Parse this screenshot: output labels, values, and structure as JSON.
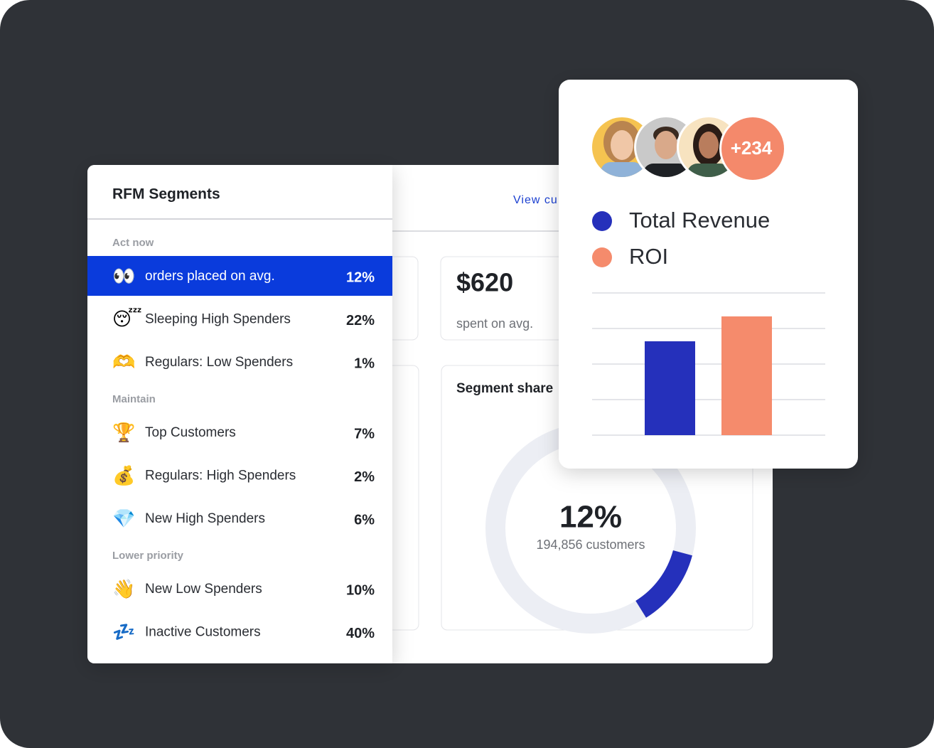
{
  "rfm_segments": {
    "title": "RFM Segments",
    "groups": [
      {
        "label": "Act now",
        "rows": [
          {
            "icon": "👀",
            "name": "orders placed on avg.",
            "share": "12%",
            "selected": true
          },
          {
            "icon": "😴",
            "name": "Sleeping High Spenders",
            "share": "22%",
            "selected": false
          },
          {
            "icon": "🫶",
            "name": "Regulars: Low Spenders",
            "share": "1%",
            "selected": false
          }
        ]
      },
      {
        "label": "Maintain",
        "rows": [
          {
            "icon": "🏆",
            "name": "Top Customers",
            "share": "7%",
            "selected": false
          },
          {
            "icon": "💰",
            "name": "Regulars: High Spenders",
            "share": "2%",
            "selected": false
          },
          {
            "icon": "💎",
            "name": "New High Spenders",
            "share": "6%",
            "selected": false
          }
        ]
      },
      {
        "label": "Lower priority",
        "rows": [
          {
            "icon": "👋",
            "name": "New Low Spenders",
            "share": "10%",
            "selected": false
          },
          {
            "icon": "💤",
            "name": "Inactive Customers",
            "share": "40%",
            "selected": false
          }
        ]
      }
    ]
  },
  "dashboard": {
    "header_link": "View cu",
    "stat": {
      "value": "$620",
      "label": "spent on avg."
    },
    "segment_share": {
      "title": "Segment share",
      "chart_data": {
        "type": "donut",
        "values": [
          12
        ],
        "value_labels": [
          "12%"
        ],
        "subtitle": "194,856 customers",
        "color": "#2530bb",
        "track_color": "#eceef4"
      }
    }
  },
  "revenue_card": {
    "avatars_more": "+234",
    "chart_data": {
      "type": "bar",
      "categories": [
        null
      ],
      "series": [
        {
          "name": "Total Revenue",
          "color": "#2530bb",
          "values": [
            2.64
          ]
        },
        {
          "name": "ROI",
          "color": "#f58b6c",
          "values": [
            3.34
          ]
        }
      ],
      "ylim": [
        0,
        4
      ],
      "yticks": [
        0,
        1,
        2,
        3,
        4
      ],
      "grid": true
    }
  }
}
